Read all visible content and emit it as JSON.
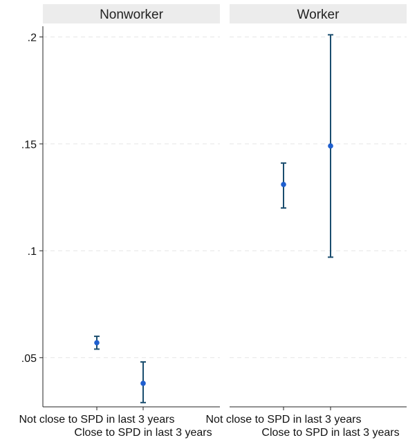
{
  "chart_data": {
    "type": "scatter",
    "subtype": "point-estimate-with-confidence-interval",
    "y_ticks": [
      0.05,
      0.1,
      0.15,
      0.2
    ],
    "y_tick_labels": [
      ".05",
      ".1",
      ".15",
      ".2"
    ],
    "ylim": [
      0.027,
      0.205
    ],
    "grid": true,
    "categories": [
      "Not close to SPD in last 3 years",
      "Close to SPD in last 3 years"
    ],
    "panels": [
      {
        "title": "Nonworker",
        "points": [
          {
            "category": "Not close to SPD in last 3 years",
            "estimate": 0.057,
            "lower": 0.054,
            "upper": 0.06
          },
          {
            "category": "Close to SPD in last 3 years",
            "estimate": 0.038,
            "lower": 0.029,
            "upper": 0.048
          }
        ]
      },
      {
        "title": "Worker",
        "points": [
          {
            "category": "Not close to SPD in last 3 years",
            "estimate": 0.131,
            "lower": 0.12,
            "upper": 0.141
          },
          {
            "category": "Close to SPD in last 3 years",
            "estimate": 0.149,
            "lower": 0.097,
            "upper": 0.201
          }
        ]
      }
    ]
  },
  "colors": {
    "point": "#1f5fcf",
    "interval": "#1a4d6e",
    "strip": "#ececec"
  }
}
